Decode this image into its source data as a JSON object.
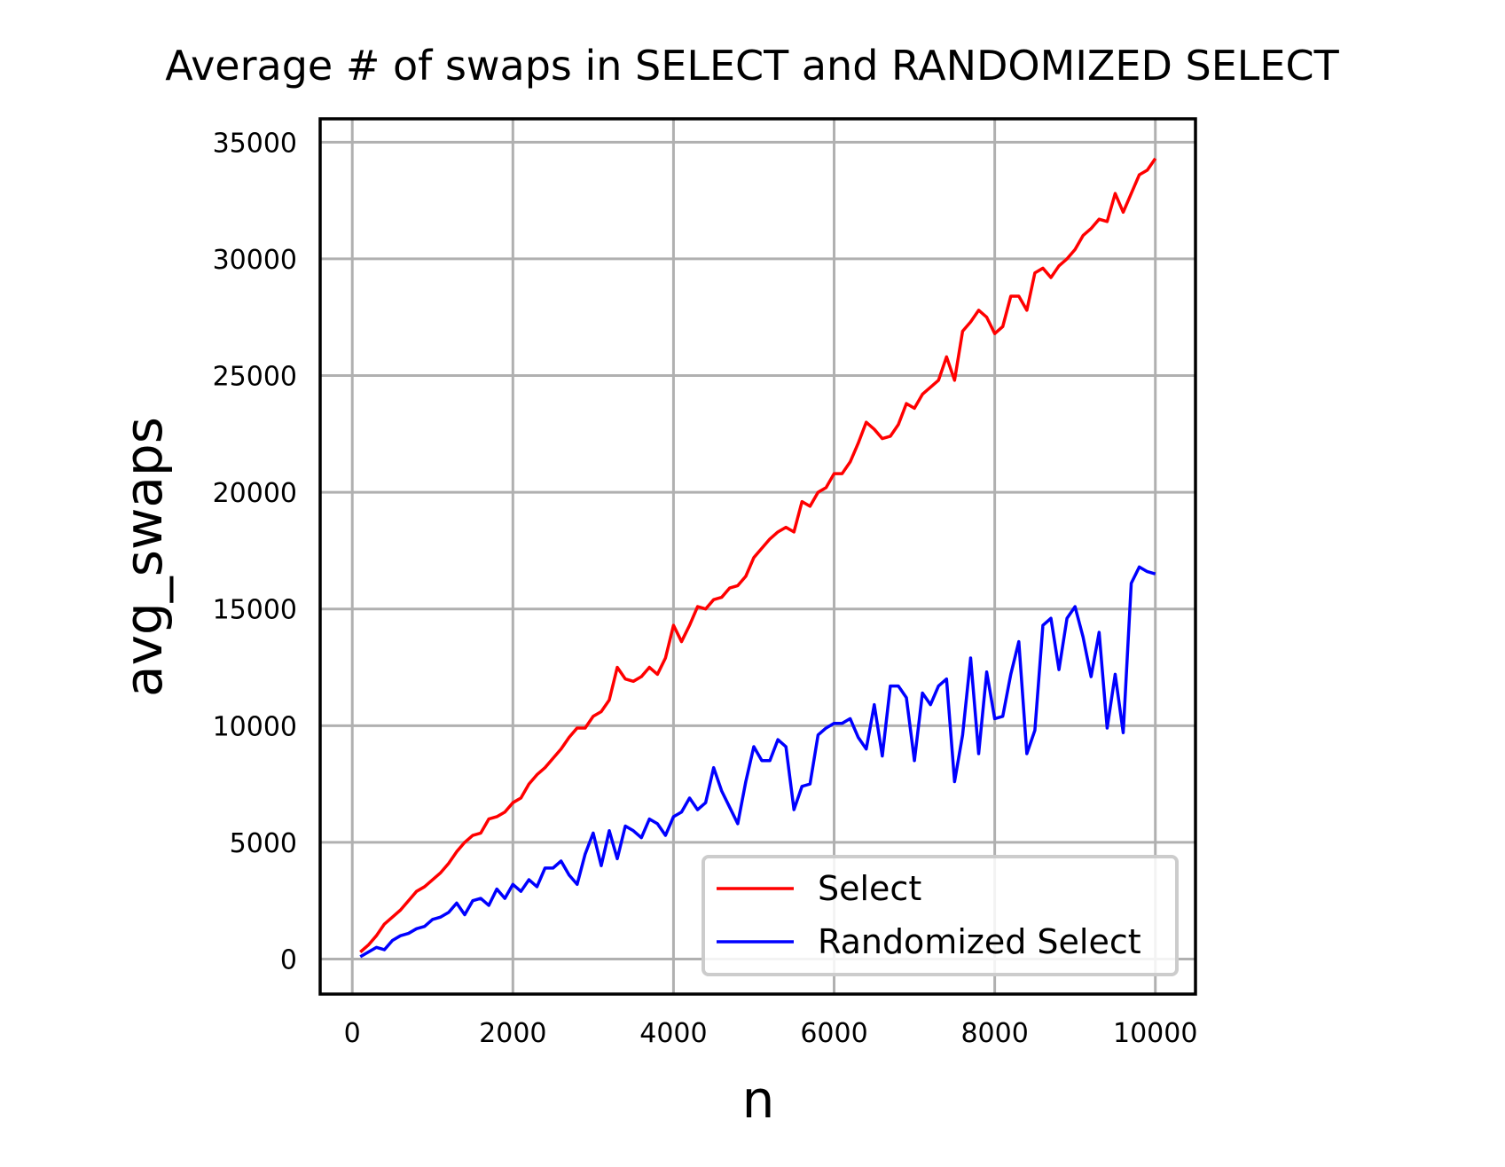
{
  "chart_data": {
    "type": "line",
    "title": "Average # of swaps in SELECT and RANDOMIZED SELECT",
    "xlabel": "n",
    "ylabel": "avg_swaps",
    "xlim": [
      -400,
      10500
    ],
    "ylim": [
      -1500,
      36000
    ],
    "x_ticks": [
      0,
      2000,
      4000,
      6000,
      8000,
      10000
    ],
    "x_tick_labels": [
      "0",
      "2000",
      "4000",
      "6000",
      "8000",
      "10000"
    ],
    "y_ticks": [
      0,
      5000,
      10000,
      15000,
      20000,
      25000,
      30000,
      35000
    ],
    "y_tick_labels": [
      "0",
      "5000",
      "10000",
      "15000",
      "20000",
      "25000",
      "30000",
      "35000"
    ],
    "grid": true,
    "legend_position": "lower-right",
    "x": [
      100,
      200,
      300,
      400,
      500,
      600,
      700,
      800,
      900,
      1000,
      1100,
      1200,
      1300,
      1400,
      1500,
      1600,
      1700,
      1800,
      1900,
      2000,
      2100,
      2200,
      2300,
      2400,
      2500,
      2600,
      2700,
      2800,
      2900,
      3000,
      3100,
      3200,
      3300,
      3400,
      3500,
      3600,
      3700,
      3800,
      3900,
      4000,
      4100,
      4200,
      4300,
      4400,
      4500,
      4600,
      4700,
      4800,
      4900,
      5000,
      5100,
      5200,
      5300,
      5400,
      5500,
      5600,
      5700,
      5800,
      5900,
      6000,
      6100,
      6200,
      6300,
      6400,
      6500,
      6600,
      6700,
      6800,
      6900,
      7000,
      7100,
      7200,
      7300,
      7400,
      7500,
      7600,
      7700,
      7800,
      7900,
      8000,
      8100,
      8200,
      8300,
      8400,
      8500,
      8600,
      8700,
      8800,
      8900,
      9000,
      9100,
      9200,
      9300,
      9400,
      9500,
      9600,
      9700,
      9800,
      9900,
      10000
    ],
    "series": [
      {
        "name": "Select",
        "color": "#ff0000",
        "values": [
          300,
          600,
          1000,
          1500,
          1800,
          2100,
          2500,
          2900,
          3100,
          3400,
          3700,
          4100,
          4600,
          5000,
          5300,
          5400,
          6000,
          6100,
          6300,
          6700,
          6900,
          7500,
          7900,
          8200,
          8600,
          9000,
          9500,
          9900,
          9900,
          10400,
          10600,
          11100,
          12500,
          12000,
          11900,
          12100,
          12500,
          12200,
          12900,
          14300,
          13600,
          14300,
          15100,
          15000,
          15400,
          15500,
          15900,
          16000,
          16400,
          17200,
          17600,
          18000,
          18300,
          18500,
          18300,
          19600,
          19400,
          20000,
          20200,
          20800,
          20800,
          21300,
          22100,
          23000,
          22700,
          22300,
          22400,
          22900,
          23800,
          23600,
          24200,
          24500,
          24800,
          25800,
          24800,
          26900,
          27300,
          27800,
          27500,
          26800,
          27100,
          28400,
          28400,
          27800,
          29400,
          29600,
          29200,
          29700,
          30000,
          30400,
          31000,
          31300,
          31700,
          31600,
          32800,
          32000,
          32800,
          33600,
          33800,
          34300
        ]
      },
      {
        "name": "Randomized Select",
        "color": "#0000ff",
        "values": [
          100,
          300,
          500,
          400,
          800,
          1000,
          1100,
          1300,
          1400,
          1700,
          1800,
          2000,
          2400,
          1900,
          2500,
          2600,
          2300,
          3000,
          2600,
          3200,
          2900,
          3400,
          3100,
          3900,
          3900,
          4200,
          3600,
          3200,
          4500,
          5400,
          4000,
          5500,
          4300,
          5700,
          5500,
          5200,
          6000,
          5800,
          5300,
          6100,
          6300,
          6900,
          6400,
          6700,
          8200,
          7200,
          6500,
          5800,
          7600,
          9100,
          8500,
          8500,
          9400,
          9100,
          6400,
          7400,
          7500,
          9600,
          9900,
          10100,
          10100,
          10300,
          9500,
          9000,
          10900,
          8700,
          11700,
          11700,
          11200,
          8500,
          11400,
          10900,
          11700,
          12000,
          7600,
          9600,
          12900,
          8800,
          12300,
          10300,
          10400,
          12200,
          13600,
          8800,
          9800,
          14300,
          14600,
          12400,
          14600,
          15100,
          13800,
          12100,
          14000,
          9900,
          12200,
          9700,
          16100,
          16800,
          16600,
          16500
        ]
      }
    ]
  }
}
